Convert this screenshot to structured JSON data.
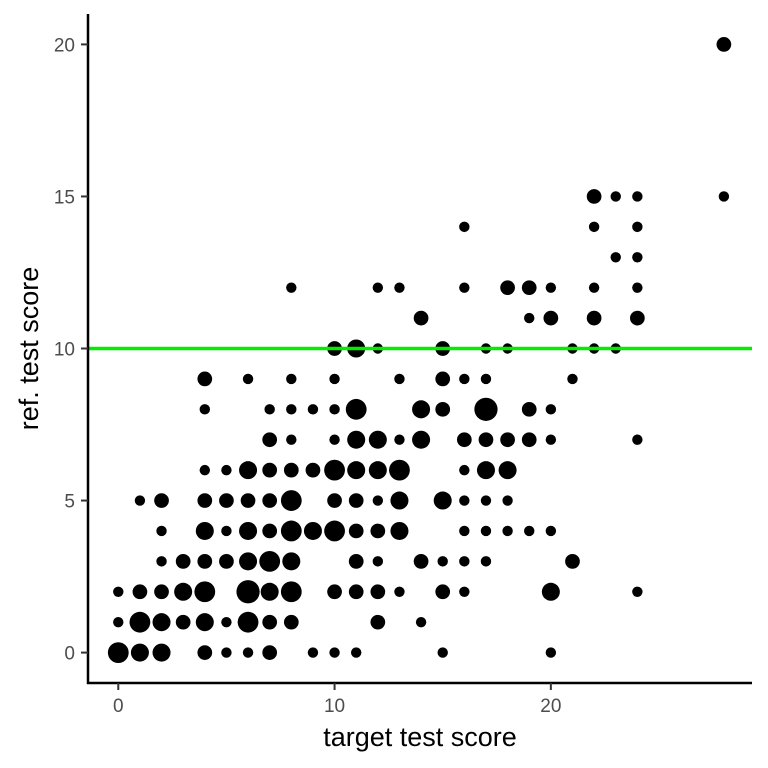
{
  "chart_data": {
    "type": "scatter",
    "title": "",
    "xlabel": "target test score",
    "ylabel": "ref. test score",
    "xlim": [
      -1.4,
      29.3
    ],
    "ylim": [
      -1,
      21
    ],
    "x_ticks": [
      0,
      10,
      20
    ],
    "y_ticks": [
      0,
      5,
      10,
      15,
      20
    ],
    "x_tick_labels": [
      "0",
      "10",
      "20"
    ],
    "y_tick_labels": [
      "0",
      "5",
      "10",
      "15",
      "20"
    ],
    "grid": false,
    "legend": "none",
    "point_color": "#000000",
    "hline": {
      "y": 10,
      "color": "#00ee00"
    },
    "size_note": "point area scales with number of observations (1-5)",
    "points": [
      {
        "x": 0,
        "y": 0,
        "n": 4
      },
      {
        "x": 1,
        "y": 0,
        "n": 3
      },
      {
        "x": 2,
        "y": 0,
        "n": 3
      },
      {
        "x": 4,
        "y": 0,
        "n": 2
      },
      {
        "x": 5,
        "y": 0,
        "n": 1
      },
      {
        "x": 6,
        "y": 0,
        "n": 1
      },
      {
        "x": 7,
        "y": 0,
        "n": 2
      },
      {
        "x": 9,
        "y": 0,
        "n": 1
      },
      {
        "x": 10,
        "y": 0,
        "n": 1
      },
      {
        "x": 11,
        "y": 0,
        "n": 1
      },
      {
        "x": 15,
        "y": 0,
        "n": 1
      },
      {
        "x": 20,
        "y": 0,
        "n": 1
      },
      {
        "x": 0,
        "y": 1,
        "n": 1
      },
      {
        "x": 1,
        "y": 1,
        "n": 4
      },
      {
        "x": 2,
        "y": 1,
        "n": 3
      },
      {
        "x": 3,
        "y": 1,
        "n": 2
      },
      {
        "x": 4,
        "y": 1,
        "n": 3
      },
      {
        "x": 5,
        "y": 1,
        "n": 1
      },
      {
        "x": 6,
        "y": 1,
        "n": 4
      },
      {
        "x": 7,
        "y": 1,
        "n": 2
      },
      {
        "x": 8,
        "y": 1,
        "n": 2
      },
      {
        "x": 12,
        "y": 1,
        "n": 2
      },
      {
        "x": 14,
        "y": 1,
        "n": 1
      },
      {
        "x": 0,
        "y": 2,
        "n": 1
      },
      {
        "x": 1,
        "y": 2,
        "n": 2
      },
      {
        "x": 2,
        "y": 2,
        "n": 2
      },
      {
        "x": 3,
        "y": 2,
        "n": 3
      },
      {
        "x": 4,
        "y": 2,
        "n": 4
      },
      {
        "x": 6,
        "y": 2,
        "n": 5
      },
      {
        "x": 7,
        "y": 2,
        "n": 3
      },
      {
        "x": 8,
        "y": 2,
        "n": 4
      },
      {
        "x": 10,
        "y": 2,
        "n": 2
      },
      {
        "x": 11,
        "y": 2,
        "n": 2
      },
      {
        "x": 12,
        "y": 2,
        "n": 2
      },
      {
        "x": 13,
        "y": 2,
        "n": 1
      },
      {
        "x": 15,
        "y": 2,
        "n": 2
      },
      {
        "x": 16,
        "y": 2,
        "n": 1
      },
      {
        "x": 20,
        "y": 2,
        "n": 3
      },
      {
        "x": 24,
        "y": 2,
        "n": 1
      },
      {
        "x": 2,
        "y": 3,
        "n": 1
      },
      {
        "x": 3,
        "y": 3,
        "n": 2
      },
      {
        "x": 4,
        "y": 3,
        "n": 2
      },
      {
        "x": 5,
        "y": 3,
        "n": 2
      },
      {
        "x": 6,
        "y": 3,
        "n": 3
      },
      {
        "x": 7,
        "y": 3,
        "n": 4
      },
      {
        "x": 8,
        "y": 3,
        "n": 3
      },
      {
        "x": 11,
        "y": 3,
        "n": 2
      },
      {
        "x": 12,
        "y": 3,
        "n": 1
      },
      {
        "x": 14,
        "y": 3,
        "n": 2
      },
      {
        "x": 15,
        "y": 3,
        "n": 1
      },
      {
        "x": 16,
        "y": 3,
        "n": 1
      },
      {
        "x": 17,
        "y": 3,
        "n": 1
      },
      {
        "x": 21,
        "y": 3,
        "n": 2
      },
      {
        "x": 2,
        "y": 4,
        "n": 1
      },
      {
        "x": 4,
        "y": 4,
        "n": 3
      },
      {
        "x": 5,
        "y": 4,
        "n": 1
      },
      {
        "x": 6,
        "y": 4,
        "n": 3
      },
      {
        "x": 7,
        "y": 4,
        "n": 2
      },
      {
        "x": 8,
        "y": 4,
        "n": 4
      },
      {
        "x": 9,
        "y": 4,
        "n": 3
      },
      {
        "x": 10,
        "y": 4,
        "n": 4
      },
      {
        "x": 11,
        "y": 4,
        "n": 2
      },
      {
        "x": 12,
        "y": 4,
        "n": 2
      },
      {
        "x": 13,
        "y": 4,
        "n": 3
      },
      {
        "x": 16,
        "y": 4,
        "n": 1
      },
      {
        "x": 17,
        "y": 4,
        "n": 1
      },
      {
        "x": 18,
        "y": 4,
        "n": 1
      },
      {
        "x": 19,
        "y": 4,
        "n": 1
      },
      {
        "x": 20,
        "y": 4,
        "n": 1
      },
      {
        "x": 1,
        "y": 5,
        "n": 1
      },
      {
        "x": 2,
        "y": 5,
        "n": 2
      },
      {
        "x": 4,
        "y": 5,
        "n": 2
      },
      {
        "x": 5,
        "y": 5,
        "n": 2
      },
      {
        "x": 6,
        "y": 5,
        "n": 2
      },
      {
        "x": 7,
        "y": 5,
        "n": 2
      },
      {
        "x": 8,
        "y": 5,
        "n": 4
      },
      {
        "x": 10,
        "y": 5,
        "n": 2
      },
      {
        "x": 11,
        "y": 5,
        "n": 2
      },
      {
        "x": 12,
        "y": 5,
        "n": 1
      },
      {
        "x": 13,
        "y": 5,
        "n": 3
      },
      {
        "x": 15,
        "y": 5,
        "n": 3
      },
      {
        "x": 16,
        "y": 5,
        "n": 1
      },
      {
        "x": 17,
        "y": 5,
        "n": 1
      },
      {
        "x": 18,
        "y": 5,
        "n": 1
      },
      {
        "x": 4,
        "y": 6,
        "n": 1
      },
      {
        "x": 5,
        "y": 6,
        "n": 1
      },
      {
        "x": 6,
        "y": 6,
        "n": 3
      },
      {
        "x": 7,
        "y": 6,
        "n": 2
      },
      {
        "x": 8,
        "y": 6,
        "n": 2
      },
      {
        "x": 9,
        "y": 6,
        "n": 2
      },
      {
        "x": 10,
        "y": 6,
        "n": 4
      },
      {
        "x": 11,
        "y": 6,
        "n": 3
      },
      {
        "x": 12,
        "y": 6,
        "n": 3
      },
      {
        "x": 13,
        "y": 6,
        "n": 4
      },
      {
        "x": 16,
        "y": 6,
        "n": 1
      },
      {
        "x": 17,
        "y": 6,
        "n": 3
      },
      {
        "x": 18,
        "y": 6,
        "n": 3
      },
      {
        "x": 7,
        "y": 7,
        "n": 2
      },
      {
        "x": 8,
        "y": 7,
        "n": 1
      },
      {
        "x": 10,
        "y": 7,
        "n": 1
      },
      {
        "x": 11,
        "y": 7,
        "n": 3
      },
      {
        "x": 12,
        "y": 7,
        "n": 3
      },
      {
        "x": 13,
        "y": 7,
        "n": 1
      },
      {
        "x": 14,
        "y": 7,
        "n": 3
      },
      {
        "x": 16,
        "y": 7,
        "n": 2
      },
      {
        "x": 17,
        "y": 7,
        "n": 2
      },
      {
        "x": 18,
        "y": 7,
        "n": 2
      },
      {
        "x": 19,
        "y": 7,
        "n": 2
      },
      {
        "x": 20,
        "y": 7,
        "n": 1
      },
      {
        "x": 24,
        "y": 7,
        "n": 1
      },
      {
        "x": 4,
        "y": 8,
        "n": 1
      },
      {
        "x": 7,
        "y": 8,
        "n": 1
      },
      {
        "x": 8,
        "y": 8,
        "n": 1
      },
      {
        "x": 9,
        "y": 8,
        "n": 1
      },
      {
        "x": 10,
        "y": 8,
        "n": 1
      },
      {
        "x": 11,
        "y": 8,
        "n": 4
      },
      {
        "x": 14,
        "y": 8,
        "n": 3
      },
      {
        "x": 15,
        "y": 8,
        "n": 2
      },
      {
        "x": 17,
        "y": 8,
        "n": 5
      },
      {
        "x": 19,
        "y": 8,
        "n": 2
      },
      {
        "x": 20,
        "y": 8,
        "n": 1
      },
      {
        "x": 4,
        "y": 9,
        "n": 2
      },
      {
        "x": 6,
        "y": 9,
        "n": 1
      },
      {
        "x": 8,
        "y": 9,
        "n": 1
      },
      {
        "x": 10,
        "y": 9,
        "n": 1
      },
      {
        "x": 13,
        "y": 9,
        "n": 1
      },
      {
        "x": 15,
        "y": 9,
        "n": 2
      },
      {
        "x": 16,
        "y": 9,
        "n": 1
      },
      {
        "x": 17,
        "y": 9,
        "n": 1
      },
      {
        "x": 21,
        "y": 9,
        "n": 1
      },
      {
        "x": 10,
        "y": 10,
        "n": 2
      },
      {
        "x": 11,
        "y": 10,
        "n": 3
      },
      {
        "x": 12,
        "y": 10,
        "n": 1
      },
      {
        "x": 15,
        "y": 10,
        "n": 2
      },
      {
        "x": 17,
        "y": 10,
        "n": 1
      },
      {
        "x": 18,
        "y": 10,
        "n": 1
      },
      {
        "x": 21,
        "y": 10,
        "n": 1
      },
      {
        "x": 22,
        "y": 10,
        "n": 1
      },
      {
        "x": 23,
        "y": 10,
        "n": 1
      },
      {
        "x": 14,
        "y": 11,
        "n": 2
      },
      {
        "x": 19,
        "y": 11,
        "n": 1
      },
      {
        "x": 20,
        "y": 11,
        "n": 2
      },
      {
        "x": 22,
        "y": 11,
        "n": 2
      },
      {
        "x": 24,
        "y": 11,
        "n": 2
      },
      {
        "x": 8,
        "y": 12,
        "n": 1
      },
      {
        "x": 12,
        "y": 12,
        "n": 1
      },
      {
        "x": 13,
        "y": 12,
        "n": 1
      },
      {
        "x": 16,
        "y": 12,
        "n": 1
      },
      {
        "x": 18,
        "y": 12,
        "n": 2
      },
      {
        "x": 19,
        "y": 12,
        "n": 2
      },
      {
        "x": 20,
        "y": 12,
        "n": 1
      },
      {
        "x": 22,
        "y": 12,
        "n": 1
      },
      {
        "x": 24,
        "y": 12,
        "n": 1
      },
      {
        "x": 23,
        "y": 13,
        "n": 1
      },
      {
        "x": 24,
        "y": 13,
        "n": 1
      },
      {
        "x": 16,
        "y": 14,
        "n": 1
      },
      {
        "x": 22,
        "y": 14,
        "n": 1
      },
      {
        "x": 24,
        "y": 14,
        "n": 1
      },
      {
        "x": 22,
        "y": 15,
        "n": 2
      },
      {
        "x": 23,
        "y": 15,
        "n": 1
      },
      {
        "x": 24,
        "y": 15,
        "n": 1
      },
      {
        "x": 28,
        "y": 15,
        "n": 1
      },
      {
        "x": 28,
        "y": 20,
        "n": 2
      }
    ]
  }
}
